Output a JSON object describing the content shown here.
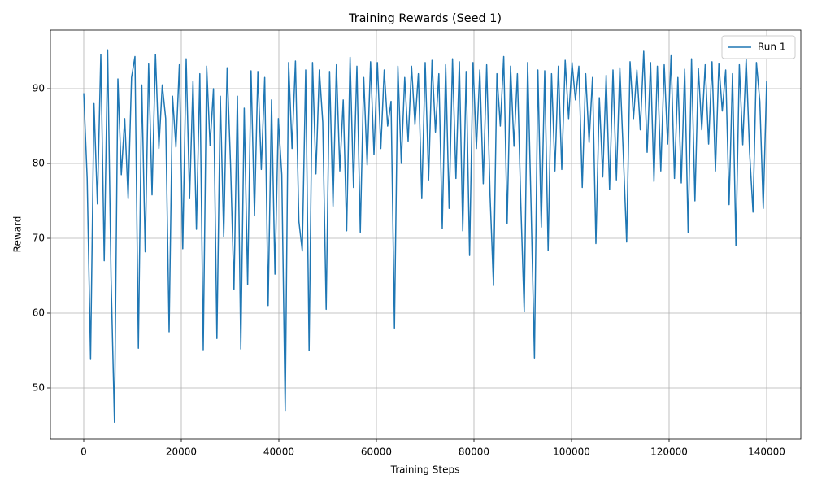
{
  "chart_data": {
    "type": "line",
    "title": "Training Rewards (Seed 1)",
    "xlabel": "Training Steps",
    "ylabel": "Reward",
    "xlim": [
      -6833,
      147000
    ],
    "ylim": [
      43.15,
      97.83
    ],
    "xticks": [
      0,
      20000,
      40000,
      60000,
      80000,
      100000,
      120000,
      140000
    ],
    "yticks": [
      50,
      60,
      70,
      80,
      90
    ],
    "grid": true,
    "legend": "upper right",
    "x": [
      0,
      700,
      1400,
      2100,
      2800,
      3500,
      4200,
      4900,
      5600,
      6300,
      7000,
      7700,
      8400,
      9100,
      9800,
      10500,
      11200,
      11900,
      12600,
      13300,
      14000,
      14700,
      15400,
      16100,
      16800,
      17500,
      18200,
      18900,
      19600,
      20300,
      21000,
      21700,
      22400,
      23100,
      23800,
      24500,
      25200,
      25900,
      26600,
      27300,
      28000,
      28700,
      29400,
      30100,
      30800,
      31500,
      32200,
      32900,
      33600,
      34300,
      35000,
      35700,
      36400,
      37100,
      37800,
      38500,
      39200,
      39900,
      40600,
      41300,
      42000,
      42700,
      43400,
      44100,
      44800,
      45500,
      46200,
      46900,
      47600,
      48300,
      49000,
      49700,
      50400,
      51100,
      51800,
      52500,
      53200,
      53900,
      54600,
      55300,
      56000,
      56700,
      57400,
      58100,
      58800,
      59500,
      60200,
      60900,
      61600,
      62300,
      63000,
      63700,
      64400,
      65100,
      65800,
      66500,
      67200,
      67900,
      68600,
      69300,
      70000,
      70700,
      71400,
      72100,
      72800,
      73500,
      74200,
      74900,
      75600,
      76300,
      77000,
      77700,
      78400,
      79100,
      79800,
      80500,
      81200,
      81900,
      82600,
      83300,
      84000,
      84700,
      85400,
      86100,
      86800,
      87500,
      88200,
      88900,
      89600,
      90300,
      91000,
      91700,
      92400,
      93100,
      93800,
      94500,
      95200,
      95900,
      96600,
      97300,
      98000,
      98700,
      99400,
      100100,
      100800,
      101500,
      102200,
      102900,
      103600,
      104300,
      105000,
      105700,
      106400,
      107100,
      107800,
      108500,
      109200,
      109900,
      110600,
      111300,
      112000,
      112700,
      113400,
      114100,
      114800,
      115500,
      116200,
      116900,
      117600,
      118300,
      119000,
      119700,
      120400,
      121100,
      121800,
      122500,
      123200,
      123900,
      124600,
      125300,
      126000,
      126700,
      127400,
      128100,
      128800,
      129500,
      130200,
      130900,
      131600,
      132300,
      133000,
      133700,
      134400,
      135100,
      135800,
      136500,
      137200,
      137900,
      138600,
      139300,
      140000
    ],
    "series": [
      {
        "name": "Run 1",
        "color": "#1f77b4",
        "values": [
          89.4,
          78,
          53.8,
          88,
          74.6,
          94.6,
          67,
          95.2,
          64.8,
          45.4,
          91.3,
          78.5,
          86,
          75.3,
          91.5,
          94.3,
          55.3,
          90.5,
          68.2,
          93.3,
          75.8,
          94.6,
          82,
          90.5,
          86,
          57.5,
          89,
          82.2,
          93.2,
          68.6,
          94,
          75.3,
          91,
          71.2,
          92,
          55.1,
          93,
          82.4,
          90,
          56.6,
          89,
          70.2,
          92.8,
          79.8,
          63.2,
          89,
          55.2,
          87.4,
          63.8,
          92.4,
          73,
          92.3,
          79.2,
          91.5,
          61,
          88.5,
          65.2,
          86,
          78.5,
          47,
          93.5,
          82,
          93.7,
          72.3,
          68.3,
          92.5,
          55,
          93.5,
          78.6,
          92.5,
          85.5,
          60.5,
          92.3,
          74.3,
          93.2,
          79,
          88.5,
          71,
          94.2,
          76.8,
          93,
          70.8,
          91.5,
          79.8,
          93.6,
          81.2,
          93.5,
          82,
          92.5,
          85,
          88.3,
          58,
          93,
          80,
          91.5,
          83,
          93,
          85.2,
          92,
          75.3,
          93.5,
          77.8,
          93.8,
          84.2,
          92,
          71.3,
          93.2,
          74,
          94,
          78,
          93.6,
          71,
          92.3,
          67.7,
          93.5,
          82,
          92.5,
          77.3,
          93.2,
          75.7,
          63.7,
          92,
          85,
          94.3,
          72,
          93,
          82.3,
          92,
          74.6,
          60.2,
          93.5,
          74.5,
          54,
          92.5,
          71.5,
          92.4,
          68.4,
          92,
          79,
          93,
          79.2,
          93.8,
          86,
          93.5,
          88.5,
          93,
          76.8,
          92,
          82.8,
          91.5,
          69.3,
          88.8,
          78.2,
          91.8,
          76.5,
          92.5,
          77.8,
          92.8,
          81.5,
          69.5,
          93.6,
          86,
          92.5,
          84.5,
          95,
          81.5,
          93.5,
          77.6,
          93,
          79,
          93.2,
          82.6,
          94.4,
          78,
          91.5,
          77.4,
          92.6,
          70.8,
          94,
          75,
          92.7,
          84.5,
          93.2,
          82.6,
          93.6,
          79,
          93.3,
          87,
          92.5,
          74.5,
          92,
          69,
          93.2,
          82.5,
          94,
          81.5,
          73.5,
          93.5,
          88.3,
          74,
          91
        ]
      }
    ]
  }
}
